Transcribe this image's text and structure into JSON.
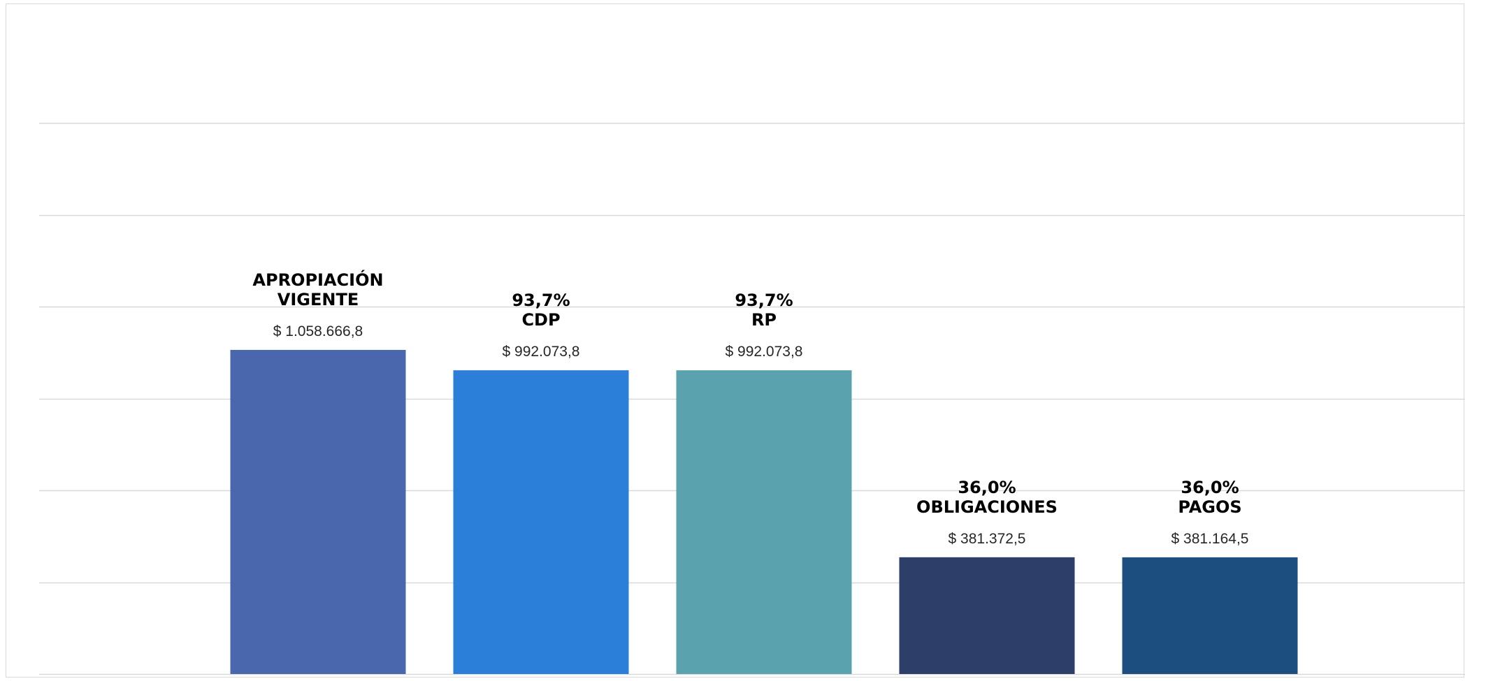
{
  "chart_data": {
    "type": "bar",
    "categories": [
      "APROPIACIÓN VIGENTE",
      "CDP",
      "RP",
      "OBLIGACIONES",
      "PAGOS"
    ],
    "category_label_lines": [
      [
        "APROPIACIÓN",
        "VIGENTE"
      ],
      [
        "93,7%",
        "CDP"
      ],
      [
        "93,7%",
        "RP"
      ],
      [
        "36,0%",
        "OBLIGACIONES"
      ],
      [
        "36,0%",
        "PAGOS"
      ]
    ],
    "values": [
      1058666.8,
      992073.8,
      992073.8,
      381372.5,
      381164.5
    ],
    "value_labels": [
      "$ 1.058.666,8",
      "$ 992.073,8",
      "$ 992.073,8",
      "$ 381.372,5",
      "$ 381.164,5"
    ],
    "colors": [
      "#4A67AD",
      "#2B7FD8",
      "#5AA2AE",
      "#2D3E69",
      "#1C4E80"
    ],
    "ylim": [
      0,
      1800000
    ],
    "gridline_step": 300000,
    "grid": true,
    "legend": "none",
    "title": "",
    "xlabel": "",
    "ylabel": ""
  }
}
